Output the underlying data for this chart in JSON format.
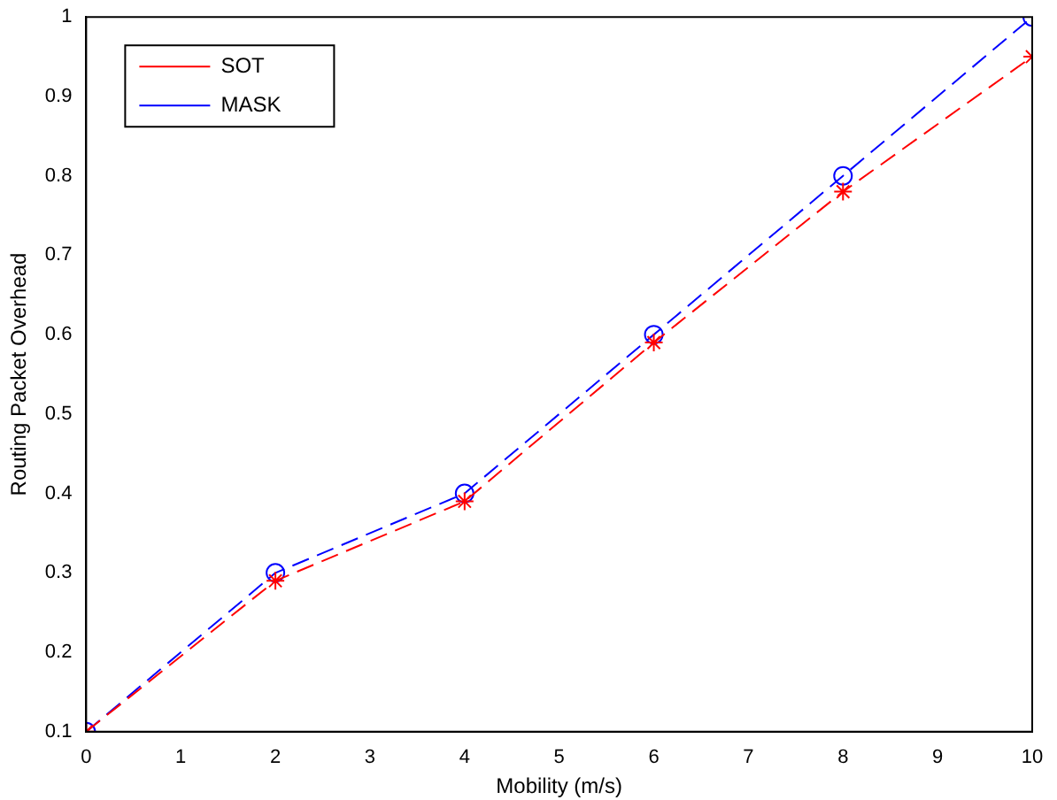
{
  "chart_data": {
    "type": "line",
    "xlabel": "Mobility (m/s)",
    "ylabel": "Routing Packet Overhead",
    "x": [
      0,
      2,
      4,
      6,
      8,
      10
    ],
    "series": [
      {
        "name": "SOT",
        "color": "#ff0000",
        "values": [
          0.1,
          0.29,
          0.39,
          0.59,
          0.78,
          0.95
        ],
        "marker": "cross",
        "line_style": "dashed"
      },
      {
        "name": "MASK",
        "color": "#0000ff",
        "values": [
          0.1,
          0.3,
          0.4,
          0.6,
          0.8,
          1.0
        ],
        "marker": "circle",
        "line_style": "dashed"
      }
    ],
    "xlim": [
      0,
      10
    ],
    "xticks": [
      0,
      1,
      2,
      3,
      4,
      5,
      6,
      7,
      8,
      9,
      10
    ],
    "ylim": [
      0.1,
      1
    ],
    "yticks": [
      0.1,
      0.2,
      0.3,
      0.4,
      0.5,
      0.6,
      0.7,
      0.8,
      0.9,
      1
    ],
    "grid": false,
    "legend": "top left"
  }
}
